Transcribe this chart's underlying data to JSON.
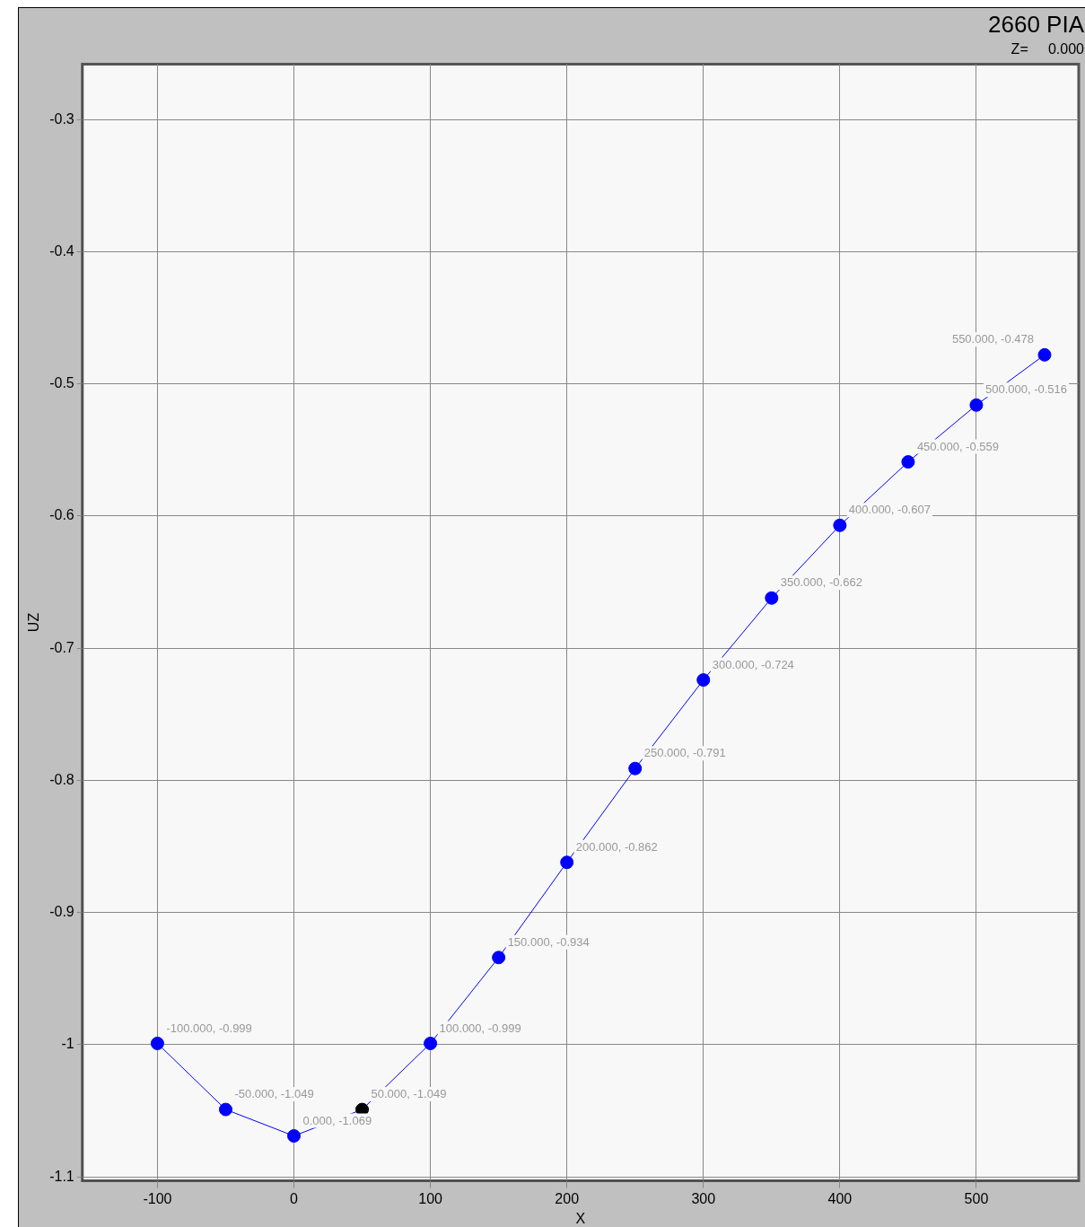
{
  "chart_data": {
    "type": "line",
    "title": "2660 PIA",
    "subtitle": "Z=     0.000",
    "xlabel": "X",
    "ylabel": "UZ",
    "x": [
      -100,
      -50,
      0,
      50,
      100,
      150,
      200,
      250,
      300,
      350,
      400,
      450,
      500,
      550
    ],
    "series": [
      {
        "color": "#0000ff",
        "colors": [
          "#0000ff",
          "#0000ff",
          "#0000ff",
          "#000000",
          "#0000ff",
          "#0000ff",
          "#0000ff",
          "#0000ff",
          "#0000ff",
          "#0000ff",
          "#0000ff",
          "#0000ff",
          "#0000ff",
          "#0000ff"
        ],
        "values": [
          -0.999,
          -1.049,
          -1.069,
          -1.049,
          -0.999,
          -0.934,
          -0.862,
          -0.791,
          -0.724,
          -0.662,
          -0.607,
          -0.559,
          -0.516,
          -0.478
        ],
        "value_labels": [
          "-100.000, -0.999",
          "-50.000, -1.049",
          "0.000, -1.069",
          "50.000, -1.049",
          "100.000, -0.999",
          "150.000, -0.934",
          "200.000, -0.862",
          "250.000, -0.791",
          "300.000, -0.724",
          "350.000, -0.662",
          "400.000, -0.607",
          "450.000, -0.559",
          "500.000, -0.516",
          "550.000, -0.478"
        ]
      }
    ],
    "xlim": [
      -155,
      575
    ],
    "xticks": [
      -100,
      0,
      100,
      200,
      300,
      400,
      500
    ],
    "ylim": [
      -1.103,
      -0.258
    ],
    "yticks": [
      -1.1,
      -1.0,
      -0.9,
      -0.8,
      -0.7,
      -0.6,
      -0.5,
      -0.4,
      -0.3
    ],
    "grid": true,
    "legend": false,
    "marker": "circle",
    "line_style": "solid"
  }
}
